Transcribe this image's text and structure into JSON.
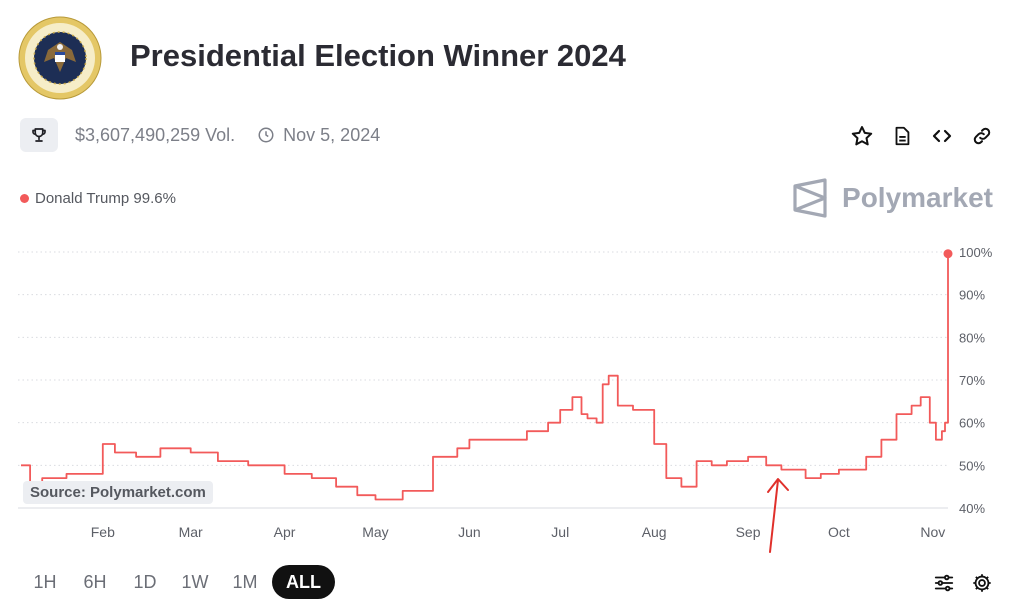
{
  "header": {
    "title": "Presidential Election Winner 2024",
    "seal_icon": "presidential-seal-icon"
  },
  "meta": {
    "volume": "$3,607,490,259 Vol.",
    "date": "Nov 5, 2024"
  },
  "actions": [
    "star-icon",
    "document-icon",
    "code-embed-icon",
    "link-icon"
  ],
  "legend": {
    "label": "Donald Trump 99.6%",
    "color": "#f25a5a"
  },
  "brand": {
    "name": "Polymarket",
    "color": "#a3a8b4"
  },
  "source": "Source: Polymarket.com",
  "tabs": [
    {
      "label": "1H",
      "active": false
    },
    {
      "label": "6H",
      "active": false
    },
    {
      "label": "1D",
      "active": false
    },
    {
      "label": "1W",
      "active": false
    },
    {
      "label": "1M",
      "active": false
    },
    {
      "label": "ALL",
      "active": true
    }
  ],
  "chart_data": {
    "type": "line",
    "title": "",
    "xlabel": "",
    "ylabel": "",
    "ylim": [
      40,
      100
    ],
    "yticks": [
      40,
      50,
      60,
      70,
      80,
      90,
      100
    ],
    "ytick_labels": [
      "40%",
      "50%",
      "60%",
      "70%",
      "80%",
      "90%",
      "100%"
    ],
    "xtick_labels": [
      "Feb",
      "Mar",
      "Apr",
      "May",
      "Jun",
      "Jul",
      "Aug",
      "Sep",
      "Oct",
      "Nov"
    ],
    "xtick_dates": [
      "2024-02-01",
      "2024-03-01",
      "2024-04-01",
      "2024-05-01",
      "2024-06-01",
      "2024-07-01",
      "2024-08-01",
      "2024-09-01",
      "2024-10-01",
      "2024-11-01"
    ],
    "grid": true,
    "series": [
      {
        "name": "Donald Trump",
        "color": "#f25a5a",
        "x": [
          "2024-01-05",
          "2024-01-08",
          "2024-01-12",
          "2024-01-20",
          "2024-01-25",
          "2024-02-01",
          "2024-02-05",
          "2024-02-12",
          "2024-02-20",
          "2024-03-01",
          "2024-03-10",
          "2024-03-20",
          "2024-04-01",
          "2024-04-10",
          "2024-04-18",
          "2024-04-25",
          "2024-05-01",
          "2024-05-10",
          "2024-05-20",
          "2024-05-28",
          "2024-06-01",
          "2024-06-10",
          "2024-06-20",
          "2024-06-27",
          "2024-07-01",
          "2024-07-05",
          "2024-07-08",
          "2024-07-10",
          "2024-07-13",
          "2024-07-15",
          "2024-07-17",
          "2024-07-20",
          "2024-07-25",
          "2024-08-01",
          "2024-08-05",
          "2024-08-10",
          "2024-08-15",
          "2024-08-20",
          "2024-08-25",
          "2024-09-01",
          "2024-09-07",
          "2024-09-12",
          "2024-09-20",
          "2024-09-25",
          "2024-10-01",
          "2024-10-05",
          "2024-10-10",
          "2024-10-15",
          "2024-10-20",
          "2024-10-25",
          "2024-10-28",
          "2024-10-31",
          "2024-11-02",
          "2024-11-04",
          "2024-11-05",
          "2024-11-06"
        ],
        "y": [
          50,
          42,
          47,
          48,
          48,
          55,
          53,
          52,
          54,
          53,
          51,
          50,
          48,
          47,
          45,
          43,
          42,
          44,
          52,
          54,
          56,
          56,
          58,
          60,
          63,
          66,
          62,
          61,
          60,
          69,
          71,
          64,
          63,
          55,
          47,
          45,
          51,
          50,
          51,
          52,
          50,
          49,
          47,
          48,
          49,
          49,
          52,
          56,
          62,
          64,
          66,
          60,
          56,
          58,
          60,
          99.6
        ]
      }
    ]
  },
  "annotation": {
    "type": "arrow",
    "color": "#e0302b"
  }
}
